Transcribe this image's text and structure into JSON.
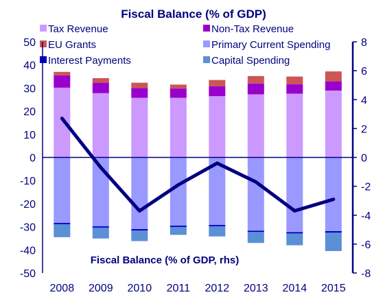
{
  "chart_data": {
    "type": "bar",
    "title": "Fiscal Balance (% of GDP)",
    "categories": [
      "2008",
      "2009",
      "2010",
      "2011",
      "2012",
      "2013",
      "2014",
      "2015"
    ],
    "ylim": [
      -50,
      50
    ],
    "yticks": [
      50,
      40,
      30,
      20,
      10,
      0,
      -10,
      -20,
      -30,
      -40,
      -50
    ],
    "y2lim": [
      -8,
      8
    ],
    "y2ticks": [
      "8",
      "6",
      "4",
      "2",
      "0",
      "-2",
      "-4",
      "-6",
      "-8"
    ],
    "stacked": true,
    "series": [
      {
        "name": "Tax Revenue",
        "color": "#cc99ff",
        "values": [
          30.2,
          27.8,
          25.8,
          25.8,
          26.5,
          27.3,
          27.6,
          28.9
        ]
      },
      {
        "name": "Non-Tax Revenue",
        "color": "#9900cc",
        "values": [
          5.3,
          4.5,
          4.2,
          4.0,
          4.2,
          4.7,
          4.1,
          4.0
        ]
      },
      {
        "name": "EU Grants",
        "color": "#cc5555",
        "values": [
          1.5,
          2.0,
          2.3,
          1.7,
          2.8,
          3.2,
          3.3,
          4.3
        ]
      },
      {
        "name": "Primary Current Spending",
        "color": "#9999ff",
        "values": [
          -28.3,
          -29.8,
          -31.0,
          -29.5,
          -29.2,
          -31.7,
          -32.3,
          -31.9
        ]
      },
      {
        "name": "Interest Payments",
        "color": "#0000cc",
        "values": [
          -0.6,
          -0.6,
          -0.6,
          -0.6,
          -0.6,
          -0.6,
          -0.6,
          -0.6
        ]
      },
      {
        "name": "Capital Spending",
        "color": "#5b8fd6",
        "values": [
          -5.6,
          -4.7,
          -4.6,
          -3.4,
          -4.4,
          -4.7,
          -5.1,
          -8.0
        ]
      }
    ],
    "line": {
      "name": "Fiscal Balance (% of GDP, rhs)",
      "color": "#000080",
      "axis": "right",
      "values": [
        2.7,
        -0.7,
        -3.7,
        -1.9,
        -0.4,
        -1.7,
        -3.7,
        -2.9
      ]
    },
    "legend": "top",
    "grid": false
  }
}
